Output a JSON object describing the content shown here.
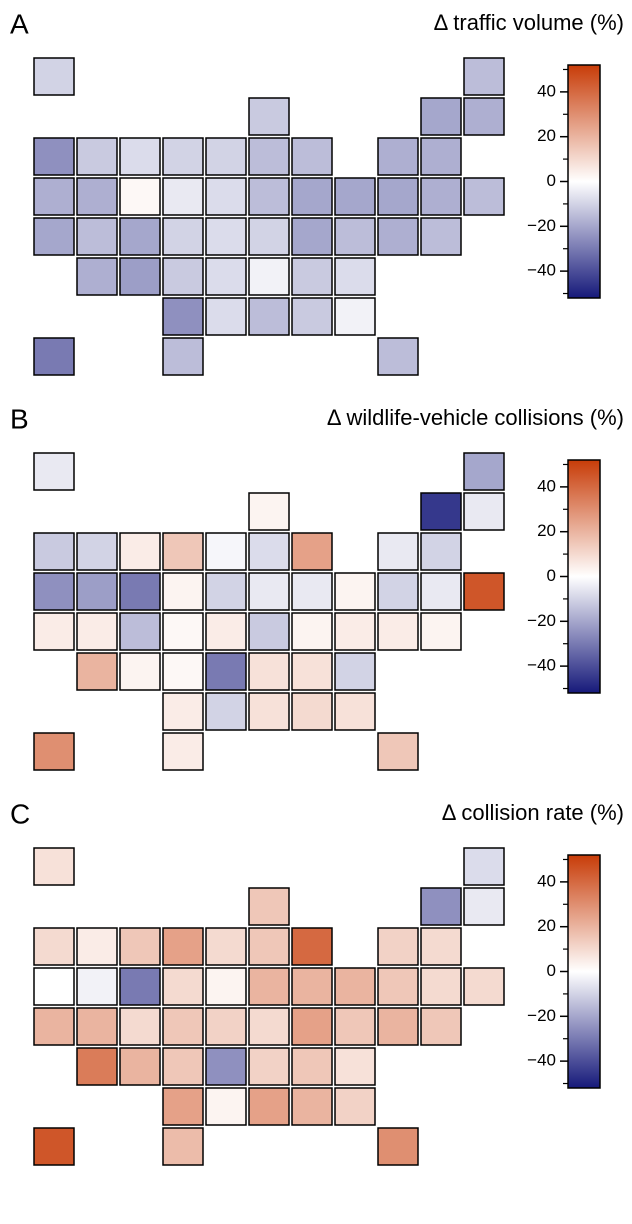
{
  "chart_data": [
    {
      "type": "map",
      "panel_label": "A",
      "title": "Δ traffic volume (%)",
      "values": [
        -10,
        -15,
        -12,
        -20,
        -18,
        -25,
        -12,
        -8,
        -10,
        -10,
        -15,
        -15,
        -18,
        -18,
        -18,
        -18,
        2,
        -5,
        -8,
        -15,
        -20,
        -20,
        -20,
        -18,
        -15,
        -20,
        -15,
        -20,
        -10,
        -8,
        -10,
        -20,
        -15,
        -18,
        -15,
        -18,
        -22,
        -12,
        -8,
        -3,
        -12,
        -8,
        -25,
        -8,
        -15,
        -12,
        -3,
        -30,
        -15,
        -15
      ],
      "clim": [
        -52,
        52
      ],
      "colors": [
        "#16197a",
        "#ffffff",
        "#c83c08"
      ],
      "cticks": [
        {
          "value": -40,
          "label": "−40"
        },
        {
          "value": -20,
          "label": "−20"
        },
        0,
        20,
        40
      ],
      "cminor": [
        -50,
        -30,
        -10,
        10,
        30,
        50
      ]
    },
    {
      "type": "map",
      "panel_label": "B",
      "title": "Δ wildlife-vehicle collisions (%)",
      "values": [
        -5,
        -20,
        3,
        -45,
        -5,
        -12,
        -10,
        5,
        15,
        -2,
        -8,
        25,
        -5,
        -10,
        -25,
        -22,
        -30,
        3,
        -10,
        -5,
        -5,
        3,
        -10,
        -5,
        45,
        5,
        5,
        -15,
        2,
        5,
        -12,
        3,
        5,
        5,
        3,
        20,
        3,
        2,
        -30,
        8,
        8,
        -10,
        5,
        -10,
        8,
        10,
        8,
        30,
        5,
        15
      ],
      "clim": [
        -52,
        52
      ],
      "colors": [
        "#16197a",
        "#ffffff",
        "#c83c08"
      ],
      "cticks": [
        {
          "value": -40,
          "label": "−40"
        },
        {
          "value": -20,
          "label": "−20"
        },
        0,
        20,
        40
      ],
      "cminor": [
        -50,
        -30,
        -10,
        10,
        30,
        50
      ]
    },
    {
      "type": "map",
      "panel_label": "C",
      "title": "Δ collision rate (%)",
      "values": [
        8,
        -8,
        15,
        -25,
        -5,
        10,
        5,
        15,
        25,
        10,
        15,
        40,
        12,
        10,
        0,
        -3,
        -30,
        10,
        3,
        20,
        20,
        20,
        15,
        10,
        10,
        20,
        20,
        10,
        15,
        12,
        10,
        25,
        15,
        20,
        15,
        35,
        20,
        15,
        -25,
        12,
        15,
        8,
        25,
        3,
        25,
        20,
        12,
        45,
        18,
        30
      ],
      "clim": [
        -52,
        52
      ],
      "colors": [
        "#16197a",
        "#ffffff",
        "#c83c08"
      ],
      "cticks": [
        {
          "value": -40,
          "label": "−40"
        },
        {
          "value": -20,
          "label": "−20"
        },
        0,
        20,
        40
      ],
      "cminor": [
        -50,
        -30,
        -10,
        10,
        30,
        50
      ]
    }
  ]
}
